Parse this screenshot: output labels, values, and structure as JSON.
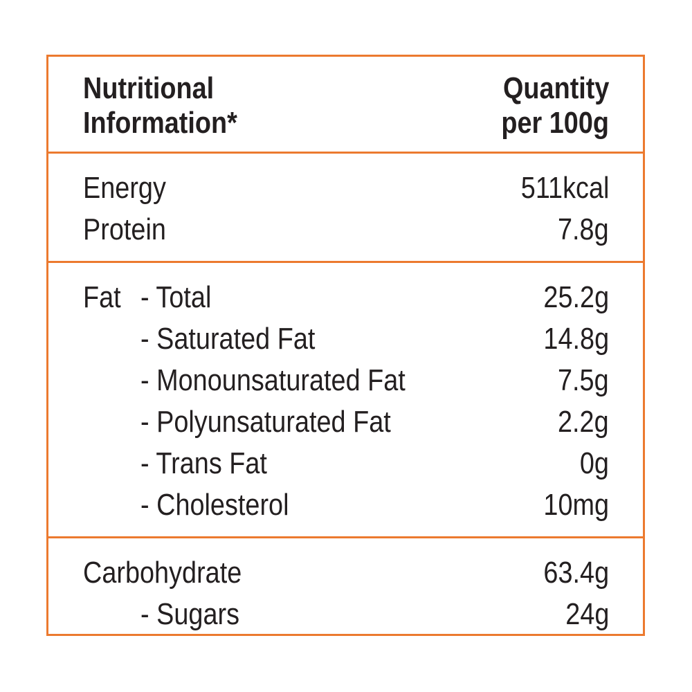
{
  "header": {
    "nutrient": [
      "Nutritional",
      "Information*"
    ],
    "quantity": [
      "Quantity",
      "per 100g"
    ]
  },
  "sections": [
    {
      "items": [
        {
          "label": "Energy",
          "value": "511kcal"
        },
        {
          "label": "Protein",
          "value": "7.8g"
        }
      ]
    },
    {
      "items": [
        {
          "label": "Fat",
          "sub": [
            {
              "label": "- Total",
              "value": "25.2g"
            },
            {
              "label": "- Saturated Fat",
              "value": "14.8g"
            },
            {
              "label": "- Monounsaturated Fat",
              "value": "7.5g"
            },
            {
              "label": "- Polyunsaturated Fat",
              "value": "2.2g"
            },
            {
              "label": "- Trans Fat",
              "value": "0g"
            },
            {
              "label": "- Cholesterol",
              "value": "10mg"
            }
          ]
        }
      ]
    },
    {
      "items": [
        {
          "label": "Carbohydrate",
          "value": "63.4g",
          "sub": [
            {
              "label": "- Sugars",
              "value": "24g"
            }
          ]
        }
      ]
    }
  ]
}
